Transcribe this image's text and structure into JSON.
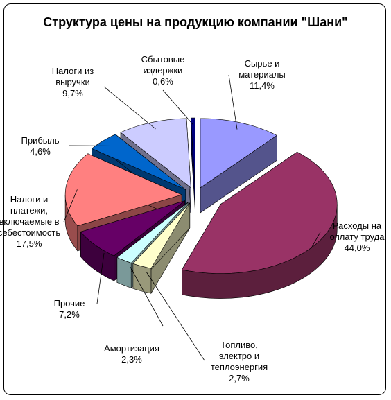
{
  "chart_data": {
    "type": "pie3d",
    "title": "Структура цены на продукцию компании \"Шани\"",
    "categories": [
      "Сырье и материалы",
      "Расходы на оплату труда",
      "Топливо, электро и теплоэнергия",
      "Амортизация",
      "Прочие",
      "Налоги и платежи, включаемые в себестоимость",
      "Прибыль",
      "Налоги из выручки",
      "Сбытовые издержки"
    ],
    "values": [
      11.4,
      44.0,
      2.7,
      2.3,
      7.2,
      17.5,
      4.6,
      9.7,
      0.6
    ],
    "value_labels": [
      "11,4%",
      "44,0%",
      "2,7%",
      "2,3%",
      "7,2%",
      "17,5%",
      "4,6%",
      "9,7%",
      "0,6%"
    ],
    "colors": [
      "#9999ff",
      "#993366",
      "#ffffcc",
      "#ccffff",
      "#660066",
      "#ff8080",
      "#0066cc",
      "#ccccff",
      "#000080"
    ]
  }
}
